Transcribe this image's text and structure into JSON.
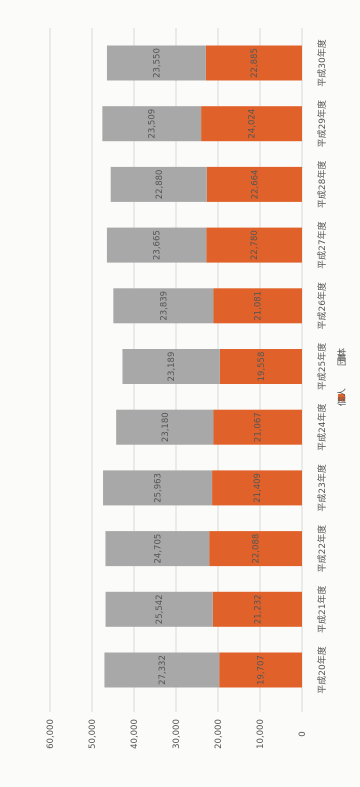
{
  "chart_data": {
    "type": "bar",
    "stacked": true,
    "orientation": "rotated 90deg (bars horizontal in image, page turned)",
    "categories": [
      "平成20年度",
      "平成21年度",
      "平成22年度",
      "平成23年度",
      "平成24年度",
      "平成25年度",
      "平成26年度",
      "平成27年度",
      "平成28年度",
      "平成29年度",
      "平成30年度"
    ],
    "series": [
      {
        "name": "個人",
        "color": "#e0622a",
        "values": [
          19707,
          21232,
          22088,
          21409,
          21067,
          19558,
          21081,
          22780,
          22664,
          24024,
          22885
        ]
      },
      {
        "name": "団体",
        "color": "#a8a8a8",
        "values": [
          27332,
          25542,
          24705,
          25963,
          23180,
          23189,
          23839,
          23665,
          22880,
          23509,
          23550
        ]
      }
    ],
    "value_labels": {
      "個人": [
        "19,707",
        "21,232",
        "22,088",
        "21,409",
        "21,067",
        "19,558",
        "21,081",
        "22,780",
        "22,664",
        "24,024",
        "22,885"
      ],
      "団体": [
        "27,332",
        "25,542",
        "24,705",
        "25,963",
        "23,180",
        "23,189",
        "23,839",
        "23,665",
        "22,880",
        "23,509",
        "23,550"
      ]
    },
    "value_axis": {
      "min": 0,
      "max": 60000,
      "ticks": [
        "0",
        "10,000",
        "20,000",
        "30,000",
        "40,000",
        "50,000",
        "60,000"
      ]
    },
    "legend": {
      "position": "bottom",
      "items": [
        "個人",
        "団体"
      ]
    },
    "grid": true
  }
}
